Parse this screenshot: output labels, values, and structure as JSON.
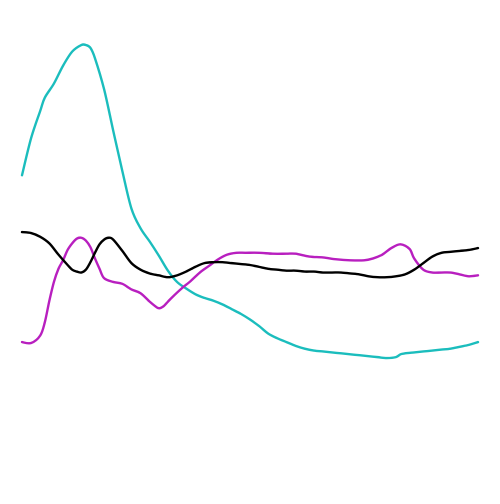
{
  "chart_data": {
    "type": "line",
    "title": "",
    "xlabel": "",
    "ylabel": "",
    "grid": false,
    "legend": "none",
    "xlim": [
      0,
      100
    ],
    "ylim": [
      0,
      100
    ],
    "series": [
      {
        "color": "#1bbdbd",
        "x": [
          0,
          2,
          4,
          5,
          7,
          9,
          11,
          13,
          14,
          15,
          16,
          18,
          20,
          22,
          24,
          26,
          28,
          30,
          32,
          34,
          36,
          38,
          40,
          42,
          44,
          46,
          48,
          50,
          52,
          54,
          56,
          58,
          60,
          62,
          64,
          66,
          68,
          70,
          72,
          74,
          76,
          78,
          80,
          82,
          83,
          84,
          86,
          88,
          90,
          92,
          94,
          96,
          98,
          100
        ],
        "y": [
          69.1,
          77.0,
          82.8,
          85.6,
          88.6,
          92.4,
          95.4,
          96.8,
          96.8,
          96.2,
          94.0,
          87.4,
          78.6,
          70.0,
          62.0,
          57.8,
          55.0,
          52.0,
          48.8,
          46.4,
          45.0,
          43.8,
          43.0,
          42.4,
          41.6,
          40.6,
          39.6,
          38.4,
          37.0,
          35.4,
          34.4,
          33.6,
          32.8,
          32.2,
          31.8,
          31.6,
          31.4,
          31.2,
          31.0,
          30.8,
          30.6,
          30.4,
          30.2,
          30.4,
          31.0,
          31.2,
          31.4,
          31.6,
          31.8,
          32.0,
          32.2,
          32.6,
          33.0,
          33.6
        ]
      },
      {
        "color": "#b81fbf",
        "x": [
          0,
          2,
          4,
          5,
          6,
          7,
          8,
          9,
          10,
          11,
          12,
          13,
          14,
          15,
          16,
          17,
          18,
          20,
          22,
          24,
          26,
          28,
          29,
          30,
          31,
          32,
          33,
          35,
          37,
          39,
          41,
          43,
          45,
          47,
          49,
          52,
          55,
          58,
          60,
          63,
          66,
          69,
          72,
          75,
          77,
          79,
          81,
          83,
          85,
          86,
          88,
          90,
          92,
          94,
          96,
          98,
          100
        ],
        "y": [
          33.6,
          33.4,
          35.0,
          37.8,
          42.4,
          46.4,
          49.2,
          51.0,
          53.2,
          54.6,
          55.6,
          55.8,
          55.2,
          53.8,
          51.4,
          49.2,
          47.2,
          46.4,
          46.0,
          44.8,
          44.0,
          42.2,
          41.4,
          40.8,
          41.2,
          42.2,
          43.2,
          45.0,
          46.6,
          48.4,
          49.8,
          51.2,
          52.2,
          52.6,
          52.6,
          52.6,
          52.4,
          52.4,
          52.4,
          51.8,
          51.6,
          51.2,
          51.0,
          51.0,
          51.4,
          52.2,
          53.6,
          54.4,
          53.4,
          51.4,
          49.0,
          48.4,
          48.4,
          48.4,
          48.0,
          47.6,
          47.8
        ]
      },
      {
        "color": "#000000",
        "x": [
          0,
          2,
          4,
          6,
          8,
          10,
          11,
          12,
          13,
          14,
          15,
          16,
          17,
          18,
          19,
          20,
          22,
          24,
          26,
          28,
          30,
          32,
          34,
          36,
          38,
          40,
          42,
          44,
          46,
          48,
          50,
          52,
          54,
          56,
          58,
          60,
          62,
          64,
          66,
          68,
          70,
          72,
          74,
          76,
          78,
          80,
          82,
          84,
          86,
          88,
          90,
          92,
          94,
          96,
          98,
          100
        ],
        "y": [
          57.0,
          56.8,
          56.0,
          54.6,
          52.2,
          50.0,
          49.0,
          48.6,
          48.4,
          49.0,
          50.6,
          52.6,
          54.4,
          55.4,
          55.8,
          55.4,
          53.0,
          50.4,
          49.0,
          48.2,
          47.8,
          47.4,
          47.8,
          48.6,
          49.6,
          50.4,
          50.6,
          50.6,
          50.4,
          50.2,
          50.0,
          49.6,
          49.2,
          49.0,
          48.8,
          48.8,
          48.6,
          48.6,
          48.4,
          48.4,
          48.4,
          48.2,
          48.0,
          47.6,
          47.4,
          47.4,
          47.6,
          48.0,
          49.0,
          50.4,
          51.8,
          52.6,
          52.8,
          53.0,
          53.2,
          53.6
        ]
      }
    ]
  }
}
